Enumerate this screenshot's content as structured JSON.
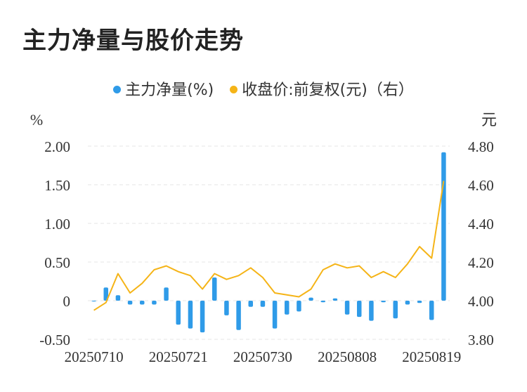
{
  "title": "主力净量与股价走势",
  "legend": {
    "bar": "主力净量(%)",
    "line": "收盘价:前复权(元)（右）"
  },
  "colors": {
    "bar": "#2f9be8",
    "line": "#f5b417",
    "grid": "#e6e6e6",
    "text": "#333333"
  },
  "chart_data": {
    "type": "bar+line",
    "title": "主力净量与股价走势",
    "left_axis": {
      "label": "%",
      "ticks": [
        "2.00",
        "1.50",
        "1.00",
        "0.50",
        "0",
        "-0.50"
      ],
      "range": [
        -0.5,
        2.0
      ]
    },
    "right_axis": {
      "label": "元",
      "ticks": [
        "4.80",
        "4.60",
        "4.40",
        "4.20",
        "4.00",
        "3.80"
      ],
      "range": [
        3.8,
        4.8
      ]
    },
    "x_tick_labels": [
      "20250710",
      "20250721",
      "20250730",
      "20250808",
      "20250819"
    ],
    "bar_values": [
      -0.01,
      0.17,
      0.07,
      -0.05,
      -0.05,
      -0.05,
      0.17,
      -0.31,
      -0.36,
      -0.41,
      0.3,
      -0.19,
      -0.38,
      -0.08,
      -0.08,
      -0.36,
      -0.18,
      -0.14,
      0.04,
      -0.02,
      0.03,
      -0.18,
      -0.21,
      -0.26,
      -0.02,
      -0.23,
      -0.05,
      -0.03,
      -0.25,
      1.92
    ],
    "line_values": [
      3.95,
      3.99,
      4.14,
      4.04,
      4.09,
      4.16,
      4.18,
      4.15,
      4.13,
      4.06,
      4.14,
      4.11,
      4.13,
      4.17,
      4.12,
      4.04,
      4.03,
      4.02,
      4.06,
      4.16,
      4.19,
      4.17,
      4.18,
      4.12,
      4.15,
      4.12,
      4.19,
      4.28,
      4.22,
      4.62
    ]
  }
}
